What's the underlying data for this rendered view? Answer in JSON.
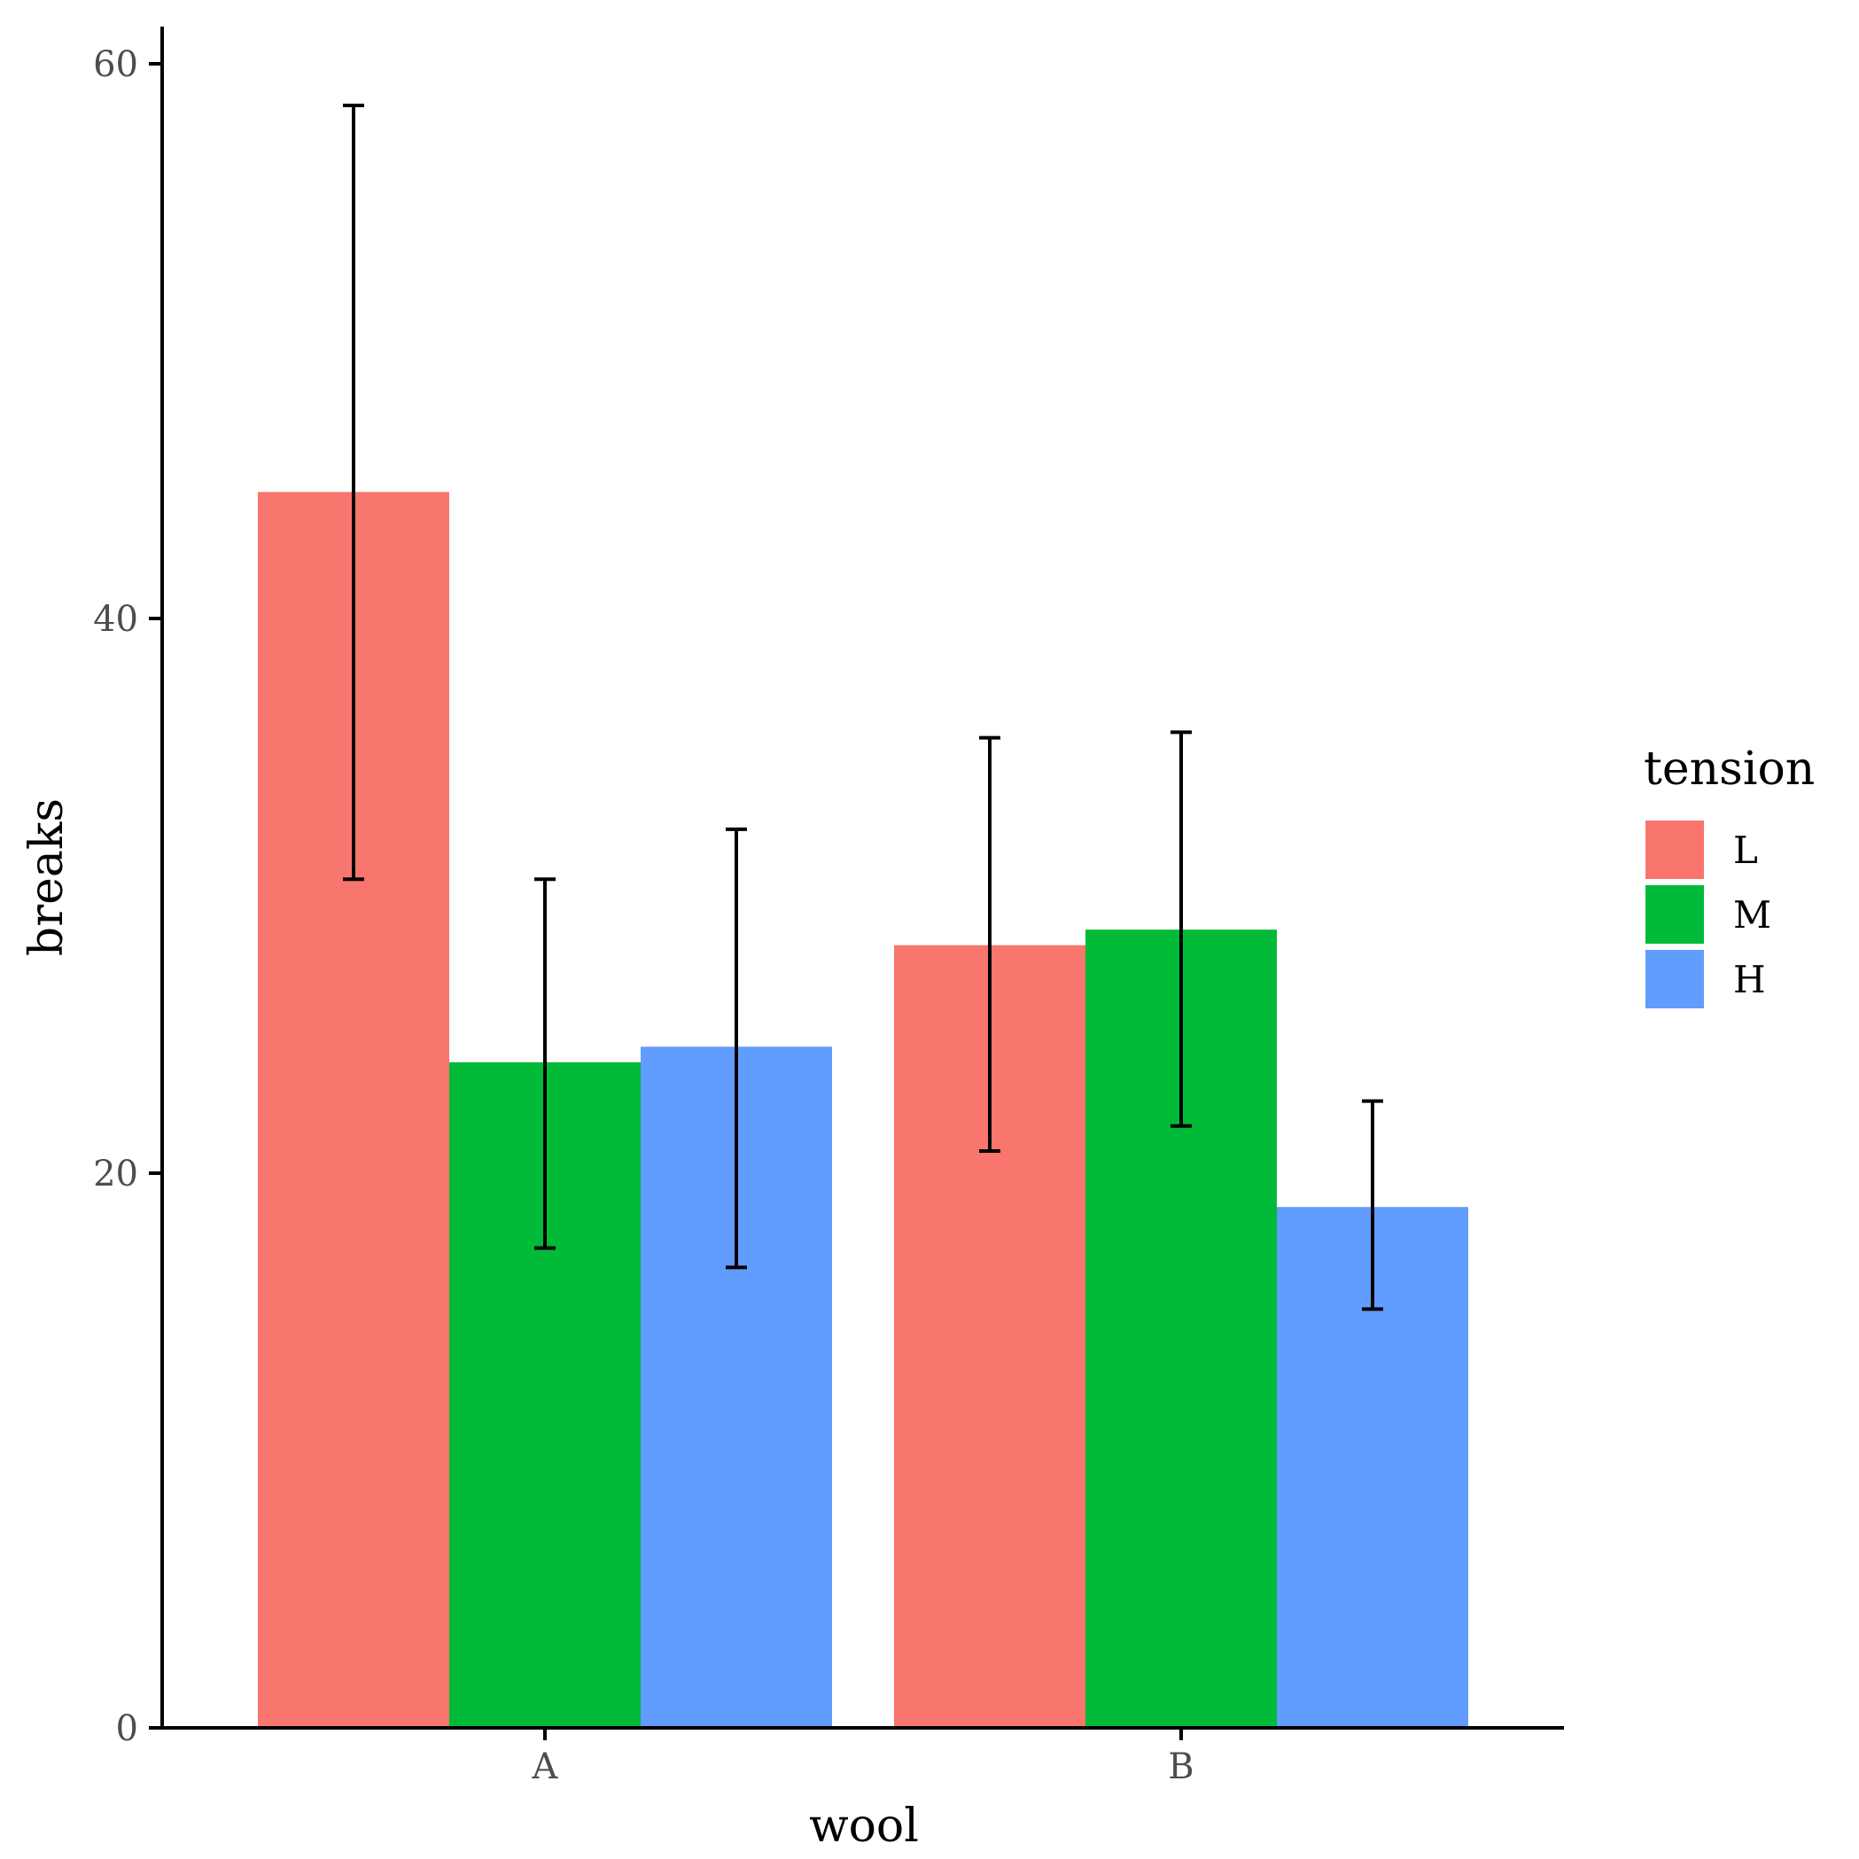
{
  "chart_data": {
    "type": "bar",
    "title": "",
    "xlabel": "wool",
    "ylabel": "breaks",
    "categories": [
      "A",
      "B"
    ],
    "ylim": [
      0,
      60
    ],
    "yticks": [
      0,
      20,
      40,
      60
    ],
    "grid": false,
    "legend": {
      "title": "tension",
      "placement": "right"
    },
    "series": [
      {
        "name": "L",
        "color": "#F8766D",
        "values": [
          44.56,
          28.22
        ],
        "err_low": [
          30.6,
          20.8
        ],
        "err_high": [
          58.5,
          35.7
        ]
      },
      {
        "name": "M",
        "color": "#00BA38",
        "values": [
          24.0,
          28.78
        ],
        "err_low": [
          17.3,
          21.7
        ],
        "err_high": [
          30.6,
          35.9
        ]
      },
      {
        "name": "H",
        "color": "#619CFF",
        "values": [
          24.56,
          18.78
        ],
        "err_low": [
          16.6,
          15.1
        ],
        "err_high": [
          32.4,
          22.6
        ]
      }
    ]
  }
}
